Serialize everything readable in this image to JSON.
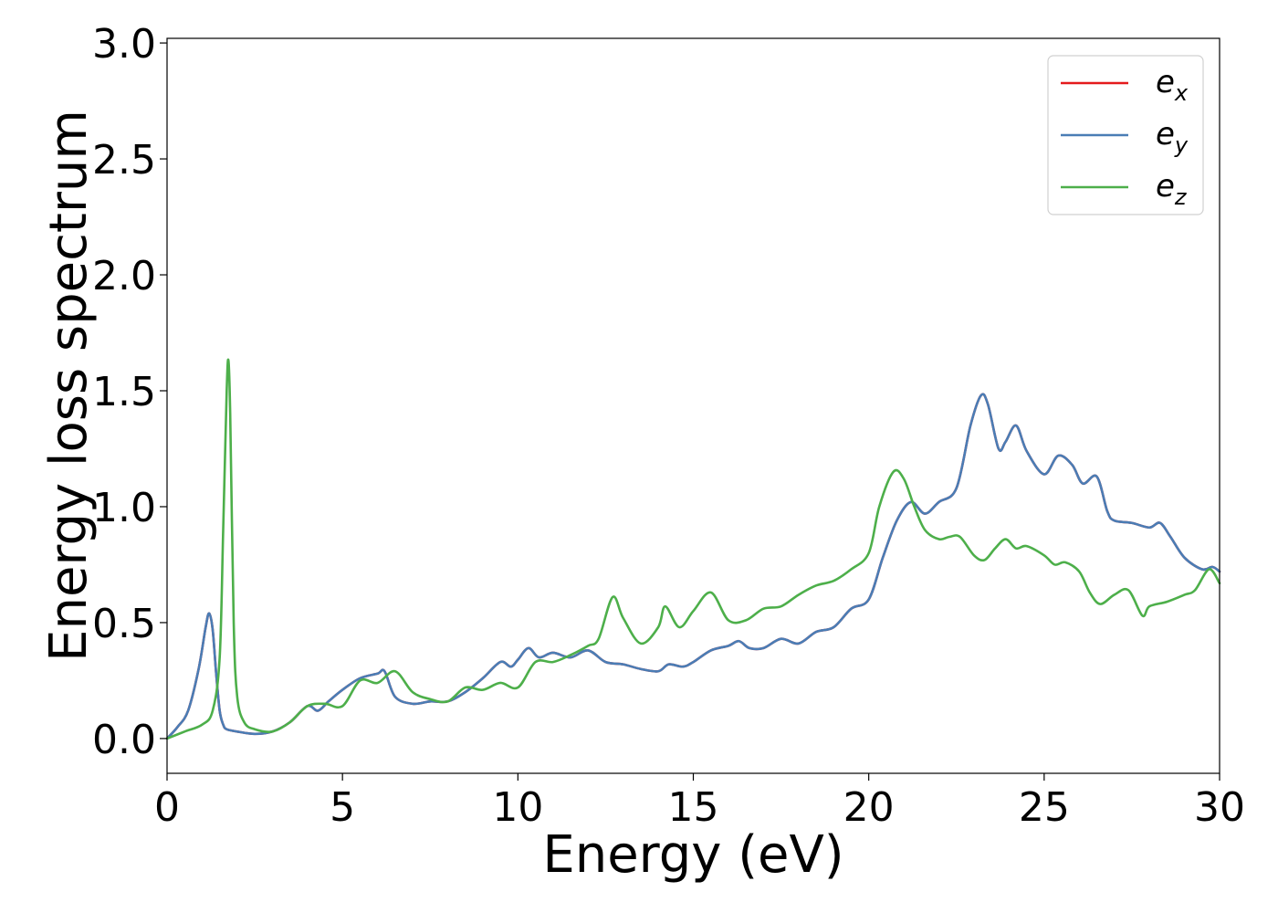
{
  "chart_data": {
    "type": "line",
    "xlabel": "Energy (eV)",
    "ylabel": "Energy loss spectrum",
    "xlim": [
      0,
      30
    ],
    "ylim": [
      -0.15,
      3.02
    ],
    "x_ticks": [
      0,
      5,
      10,
      15,
      20,
      25,
      30
    ],
    "x_tick_labels": [
      "0",
      "5",
      "10",
      "15",
      "20",
      "25",
      "30"
    ],
    "y_ticks": [
      0.0,
      0.5,
      1.0,
      1.5,
      2.0,
      2.5,
      3.0
    ],
    "y_tick_labels": [
      "0.0",
      "0.5",
      "1.0",
      "1.5",
      "2.0",
      "2.5",
      "3.0"
    ],
    "grid": false,
    "legend_position": "top-right",
    "series": [
      {
        "name": "e",
        "subscript": "x",
        "color": "#e41a1c",
        "x": [
          0,
          0.3,
          0.6,
          0.9,
          1.1,
          1.2,
          1.3,
          1.4,
          1.5,
          1.6,
          1.7,
          2.0,
          2.5,
          3.0,
          3.5,
          4.0,
          4.3,
          4.6,
          5.0,
          5.5,
          6.0,
          6.2,
          6.5,
          7.0,
          7.5,
          8.0,
          8.5,
          9.0,
          9.5,
          9.8,
          10.0,
          10.3,
          10.6,
          11.0,
          11.5,
          12.0,
          12.5,
          13.0,
          13.5,
          14.0,
          14.3,
          14.7,
          15.0,
          15.5,
          16.0,
          16.3,
          16.6,
          17.0,
          17.5,
          18.0,
          18.5,
          19.0,
          19.5,
          20.0,
          20.4,
          20.8,
          21.2,
          21.6,
          22.0,
          22.5,
          22.9,
          23.2,
          23.4,
          23.7,
          23.9,
          24.2,
          24.5,
          25.0,
          25.4,
          25.8,
          26.1,
          26.5,
          26.8,
          27.0,
          27.5,
          28.0,
          28.3,
          28.6,
          29.0,
          29.5,
          29.8,
          30.0
        ],
        "values": [
          0.0,
          0.05,
          0.12,
          0.3,
          0.48,
          0.54,
          0.47,
          0.28,
          0.12,
          0.06,
          0.04,
          0.03,
          0.02,
          0.03,
          0.07,
          0.14,
          0.12,
          0.16,
          0.21,
          0.26,
          0.28,
          0.29,
          0.18,
          0.15,
          0.16,
          0.16,
          0.2,
          0.26,
          0.33,
          0.31,
          0.34,
          0.39,
          0.35,
          0.37,
          0.35,
          0.38,
          0.33,
          0.32,
          0.3,
          0.29,
          0.32,
          0.31,
          0.33,
          0.38,
          0.4,
          0.42,
          0.39,
          0.39,
          0.43,
          0.41,
          0.46,
          0.48,
          0.56,
          0.6,
          0.78,
          0.94,
          1.02,
          0.97,
          1.02,
          1.08,
          1.35,
          1.48,
          1.44,
          1.25,
          1.28,
          1.35,
          1.24,
          1.14,
          1.22,
          1.18,
          1.1,
          1.13,
          0.98,
          0.94,
          0.93,
          0.91,
          0.93,
          0.87,
          0.78,
          0.73,
          0.74,
          0.72
        ]
      },
      {
        "name": "e",
        "subscript": "y",
        "color": "#4a7db5",
        "x": [
          0,
          0.3,
          0.6,
          0.9,
          1.1,
          1.2,
          1.3,
          1.4,
          1.5,
          1.6,
          1.7,
          2.0,
          2.5,
          3.0,
          3.5,
          4.0,
          4.3,
          4.6,
          5.0,
          5.5,
          6.0,
          6.2,
          6.5,
          7.0,
          7.5,
          8.0,
          8.5,
          9.0,
          9.5,
          9.8,
          10.0,
          10.3,
          10.6,
          11.0,
          11.5,
          12.0,
          12.5,
          13.0,
          13.5,
          14.0,
          14.3,
          14.7,
          15.0,
          15.5,
          16.0,
          16.3,
          16.6,
          17.0,
          17.5,
          18.0,
          18.5,
          19.0,
          19.5,
          20.0,
          20.4,
          20.8,
          21.2,
          21.6,
          22.0,
          22.5,
          22.9,
          23.2,
          23.4,
          23.7,
          23.9,
          24.2,
          24.5,
          25.0,
          25.4,
          25.8,
          26.1,
          26.5,
          26.8,
          27.0,
          27.5,
          28.0,
          28.3,
          28.6,
          29.0,
          29.5,
          29.8,
          30.0
        ],
        "values": [
          0.0,
          0.05,
          0.12,
          0.3,
          0.48,
          0.54,
          0.47,
          0.28,
          0.12,
          0.06,
          0.04,
          0.03,
          0.02,
          0.03,
          0.07,
          0.14,
          0.12,
          0.16,
          0.21,
          0.26,
          0.28,
          0.29,
          0.18,
          0.15,
          0.16,
          0.16,
          0.2,
          0.26,
          0.33,
          0.31,
          0.34,
          0.39,
          0.35,
          0.37,
          0.35,
          0.38,
          0.33,
          0.32,
          0.3,
          0.29,
          0.32,
          0.31,
          0.33,
          0.38,
          0.4,
          0.42,
          0.39,
          0.39,
          0.43,
          0.41,
          0.46,
          0.48,
          0.56,
          0.6,
          0.78,
          0.94,
          1.02,
          0.97,
          1.02,
          1.08,
          1.35,
          1.48,
          1.44,
          1.25,
          1.28,
          1.35,
          1.24,
          1.14,
          1.22,
          1.18,
          1.1,
          1.13,
          0.98,
          0.94,
          0.93,
          0.91,
          0.93,
          0.87,
          0.78,
          0.73,
          0.74,
          0.72
        ]
      },
      {
        "name": "e",
        "subscript": "z",
        "color": "#4daf4a",
        "x": [
          0,
          0.5,
          1.0,
          1.3,
          1.5,
          1.6,
          1.7,
          1.75,
          1.8,
          1.9,
          2.0,
          2.2,
          2.5,
          3.0,
          3.5,
          4.0,
          4.5,
          5.0,
          5.5,
          6.0,
          6.5,
          7.0,
          7.5,
          8.0,
          8.5,
          9.0,
          9.5,
          10.0,
          10.5,
          11.0,
          11.5,
          12.0,
          12.3,
          12.7,
          13.0,
          13.5,
          14.0,
          14.2,
          14.6,
          15.0,
          15.5,
          16.0,
          16.5,
          17.0,
          17.5,
          18.0,
          18.5,
          19.0,
          19.5,
          20.0,
          20.3,
          20.7,
          21.0,
          21.3,
          21.6,
          22.0,
          22.3,
          22.6,
          23.0,
          23.3,
          23.6,
          23.9,
          24.2,
          24.5,
          25.0,
          25.3,
          25.6,
          26.0,
          26.3,
          26.6,
          27.0,
          27.4,
          27.8,
          28.0,
          28.5,
          29.0,
          29.3,
          29.7,
          30.0
        ],
        "values": [
          0.0,
          0.03,
          0.06,
          0.12,
          0.35,
          0.9,
          1.5,
          1.63,
          1.4,
          0.5,
          0.18,
          0.07,
          0.04,
          0.03,
          0.07,
          0.14,
          0.15,
          0.14,
          0.25,
          0.24,
          0.29,
          0.2,
          0.17,
          0.16,
          0.22,
          0.21,
          0.24,
          0.22,
          0.33,
          0.33,
          0.36,
          0.4,
          0.43,
          0.61,
          0.52,
          0.41,
          0.48,
          0.57,
          0.48,
          0.55,
          0.63,
          0.51,
          0.51,
          0.56,
          0.57,
          0.62,
          0.66,
          0.68,
          0.73,
          0.8,
          1.0,
          1.15,
          1.12,
          1.0,
          0.9,
          0.86,
          0.87,
          0.87,
          0.79,
          0.77,
          0.82,
          0.86,
          0.82,
          0.83,
          0.79,
          0.75,
          0.76,
          0.72,
          0.63,
          0.58,
          0.62,
          0.64,
          0.53,
          0.57,
          0.59,
          0.62,
          0.64,
          0.73,
          0.67
        ]
      }
    ]
  }
}
